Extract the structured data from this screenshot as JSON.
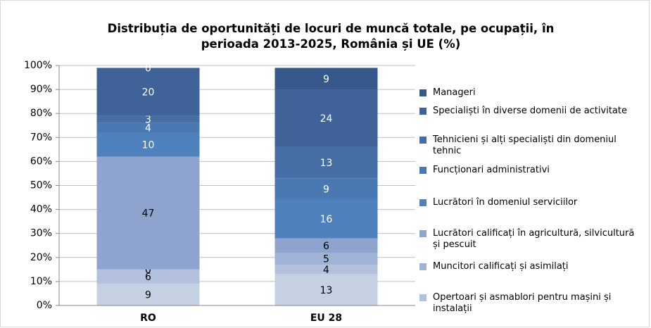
{
  "chart_data": {
    "type": "stacked_bar",
    "title": "Distribuția de oportunități de locuri de muncă totale, pe ocupații, în perioada 2013-2025, România și UE (%)",
    "categories": [
      "RO",
      "EU 28"
    ],
    "series": [
      {
        "color": "#c6d0e3",
        "values": [
          9,
          13
        ]
      },
      {
        "name": "Opertoari și asmablori pentru mașini și instalații",
        "color": "#b3c1dc",
        "values": [
          6,
          4
        ]
      },
      {
        "name": "Muncitori calificați și asimilați",
        "color": "#a0b2d5",
        "values": [
          0,
          5
        ]
      },
      {
        "name": "Lucrători calificați în agricultură, silvicultură și pescuit",
        "color": "#8ea4cf",
        "values": [
          47,
          6
        ]
      },
      {
        "name": "Lucrători în domeniul serviciilor",
        "color": "#4f81bd",
        "values": [
          10,
          16
        ]
      },
      {
        "name": "Funcționari administrativi",
        "color": "#4a78b3",
        "values": [
          4,
          9
        ]
      },
      {
        "name": "Tehnicieni și alți specialiști din domeniul tehnic",
        "color": "#456ea6",
        "values": [
          3,
          13
        ]
      },
      {
        "name": "Specialiști în diverse domenii de activitate",
        "color": "#3f6399",
        "values": [
          20,
          24
        ]
      },
      {
        "name": "Manageri",
        "color": "#37588a",
        "values": [
          0,
          9
        ]
      }
    ],
    "ylim": [
      0,
      100
    ],
    "yticks": [
      {
        "value": 0,
        "label": "0%"
      },
      {
        "value": 10,
        "label": "10%"
      },
      {
        "value": 20,
        "label": "20%"
      },
      {
        "value": 30,
        "label": "30%"
      },
      {
        "value": 40,
        "label": "40%"
      },
      {
        "value": 50,
        "label": "50%"
      },
      {
        "value": 60,
        "label": "60%"
      },
      {
        "value": 70,
        "label": "70%"
      },
      {
        "value": 80,
        "label": "80%"
      },
      {
        "value": 90,
        "label": "90%"
      },
      {
        "value": 100,
        "label": "100%"
      }
    ],
    "grid": true
  }
}
